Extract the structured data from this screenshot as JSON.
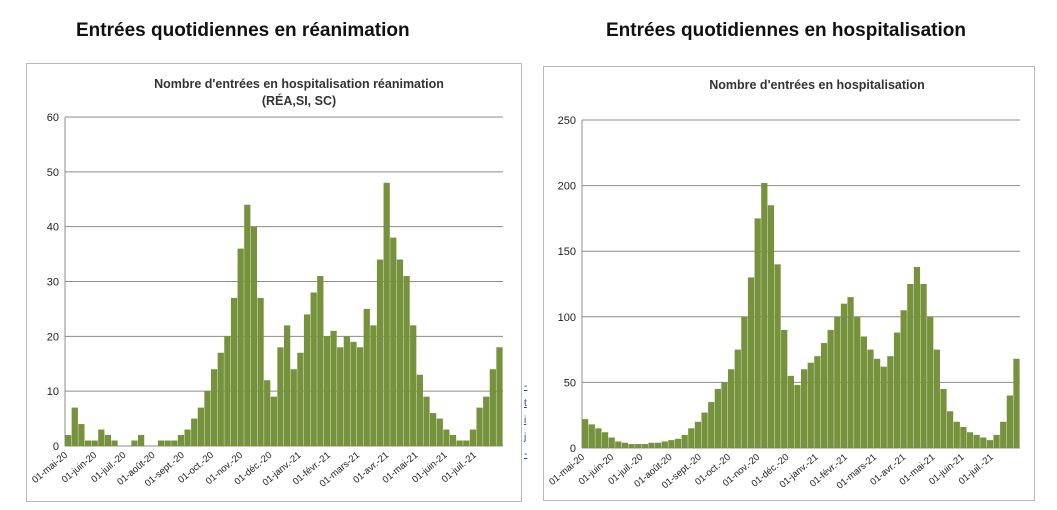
{
  "headings": {
    "left": "Entrées quotidiennes en réanimation",
    "right": "Entrées quotidiennes en hospitalisation"
  },
  "chart_data": [
    {
      "type": "bar",
      "title": "Nombre d'entrées en hospitalisation réanimation",
      "subtitle": "(RÉA,SI, SC)",
      "xlabel": "",
      "ylabel": "",
      "ylim": [
        0,
        60
      ],
      "yticks": [
        0,
        10,
        20,
        30,
        40,
        50,
        60
      ],
      "grid": true,
      "bar_color": "#76923c",
      "month_labels": [
        "01-mai-20",
        "01-juin-20",
        "01-juil.-20",
        "01-août-20",
        "01-sept.-20",
        "01-oct.-20",
        "01-nov.-20",
        "01-déc.-20",
        "01-janv.-21",
        "01-févr.-21",
        "01-mars-21",
        "01-avr.-21",
        "01-mai-21",
        "01-juin-21",
        "01-juil.-21"
      ],
      "x": [
        "2020-05-01",
        "2020-05-08",
        "2020-05-15",
        "2020-05-22",
        "2020-05-29",
        "2020-06-05",
        "2020-06-12",
        "2020-06-19",
        "2020-06-26",
        "2020-07-03",
        "2020-07-10",
        "2020-07-17",
        "2020-07-24",
        "2020-07-31",
        "2020-08-07",
        "2020-08-14",
        "2020-08-21",
        "2020-08-28",
        "2020-09-04",
        "2020-09-11",
        "2020-09-18",
        "2020-09-25",
        "2020-10-02",
        "2020-10-09",
        "2020-10-16",
        "2020-10-23",
        "2020-10-30",
        "2020-11-06",
        "2020-11-13",
        "2020-11-20",
        "2020-11-27",
        "2020-12-04",
        "2020-12-11",
        "2020-12-18",
        "2020-12-25",
        "2021-01-01",
        "2021-01-08",
        "2021-01-15",
        "2021-01-22",
        "2021-01-29",
        "2021-02-05",
        "2021-02-12",
        "2021-02-19",
        "2021-02-26",
        "2021-03-05",
        "2021-03-12",
        "2021-03-19",
        "2021-03-26",
        "2021-04-02",
        "2021-04-09",
        "2021-04-16",
        "2021-04-23",
        "2021-04-30",
        "2021-05-07",
        "2021-05-14",
        "2021-05-21",
        "2021-05-28",
        "2021-06-04",
        "2021-06-11",
        "2021-06-18",
        "2021-06-25",
        "2021-07-02",
        "2021-07-09",
        "2021-07-16",
        "2021-07-23",
        "2021-07-30"
      ],
      "values": [
        2,
        7,
        4,
        1,
        1,
        3,
        2,
        1,
        0,
        0,
        1,
        2,
        0,
        0,
        1,
        1,
        1,
        2,
        3,
        5,
        7,
        10,
        14,
        17,
        20,
        27,
        36,
        44,
        40,
        27,
        12,
        9,
        18,
        22,
        14,
        17,
        24,
        28,
        31,
        20,
        21,
        18,
        20,
        19,
        18,
        25,
        22,
        34,
        48,
        38,
        34,
        31,
        22,
        13,
        9,
        6,
        5,
        3,
        2,
        1,
        1,
        3,
        7,
        9,
        14,
        18
      ]
    },
    {
      "type": "bar",
      "title": "Nombre d'entrées en hospitalisation",
      "xlabel": "",
      "ylabel": "",
      "ylim": [
        0,
        250
      ],
      "yticks": [
        0,
        50,
        100,
        150,
        200,
        250
      ],
      "grid": true,
      "bar_color": "#76923c",
      "month_labels": [
        "01-mai-20",
        "01-juin-20",
        "01-juil.-20",
        "01-août-20",
        "01-sept.-20",
        "01-oct.-20",
        "01-nov.-20",
        "01-déc.-20",
        "01-janv.-21",
        "01-févr.-21",
        "01-mars-21",
        "01-avr.-21",
        "01-mai-21",
        "01-juin-21",
        "01-juil.-21"
      ],
      "x": [
        "2020-05-01",
        "2020-05-08",
        "2020-05-15",
        "2020-05-22",
        "2020-05-29",
        "2020-06-05",
        "2020-06-12",
        "2020-06-19",
        "2020-06-26",
        "2020-07-03",
        "2020-07-10",
        "2020-07-17",
        "2020-07-24",
        "2020-07-31",
        "2020-08-07",
        "2020-08-14",
        "2020-08-21",
        "2020-08-28",
        "2020-09-04",
        "2020-09-11",
        "2020-09-18",
        "2020-09-25",
        "2020-10-02",
        "2020-10-09",
        "2020-10-16",
        "2020-10-23",
        "2020-10-30",
        "2020-11-06",
        "2020-11-13",
        "2020-11-20",
        "2020-11-27",
        "2020-12-04",
        "2020-12-11",
        "2020-12-18",
        "2020-12-25",
        "2021-01-01",
        "2021-01-08",
        "2021-01-15",
        "2021-01-22",
        "2021-01-29",
        "2021-02-05",
        "2021-02-12",
        "2021-02-19",
        "2021-02-26",
        "2021-03-05",
        "2021-03-12",
        "2021-03-19",
        "2021-03-26",
        "2021-04-02",
        "2021-04-09",
        "2021-04-16",
        "2021-04-23",
        "2021-04-30",
        "2021-05-07",
        "2021-05-14",
        "2021-05-21",
        "2021-05-28",
        "2021-06-04",
        "2021-06-11",
        "2021-06-18",
        "2021-06-25",
        "2021-07-02",
        "2021-07-09",
        "2021-07-16",
        "2021-07-23",
        "2021-07-30"
      ],
      "values": [
        22,
        18,
        15,
        12,
        8,
        5,
        4,
        3,
        3,
        3,
        4,
        4,
        5,
        6,
        7,
        10,
        15,
        20,
        27,
        35,
        45,
        50,
        60,
        75,
        100,
        130,
        175,
        202,
        185,
        140,
        90,
        55,
        48,
        60,
        65,
        70,
        80,
        90,
        100,
        110,
        115,
        100,
        85,
        75,
        68,
        62,
        70,
        88,
        105,
        125,
        138,
        125,
        100,
        75,
        45,
        28,
        20,
        16,
        12,
        10,
        8,
        6,
        10,
        20,
        40,
        68
      ]
    }
  ],
  "sidebar_strip": [
    "-",
    "t",
    "i",
    "j",
    "-"
  ]
}
